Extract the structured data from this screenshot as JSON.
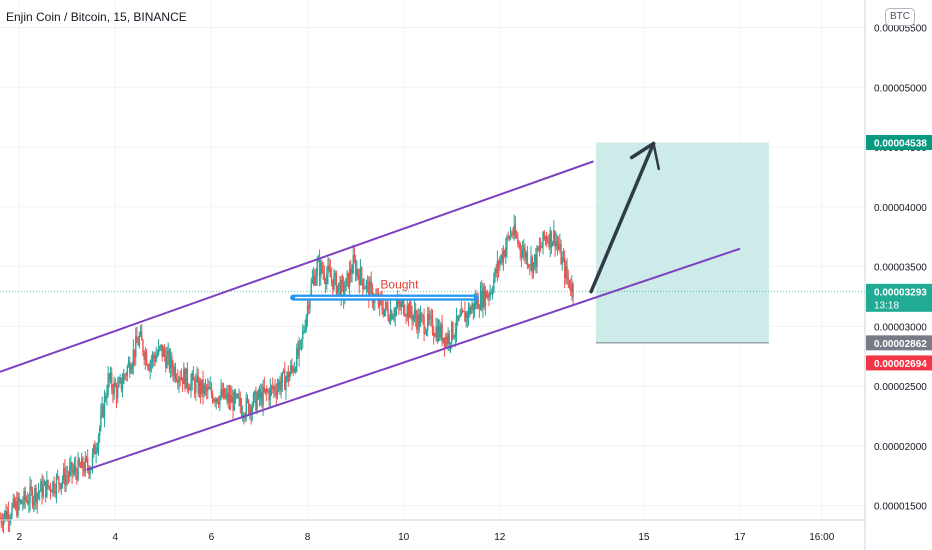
{
  "header": {
    "title": "Enjin Coin / Bitcoin, 15, BINANCE",
    "currency_button": "BTC"
  },
  "chart_data": {
    "type": "candlestick",
    "title": "Enjin Coin / Bitcoin, 15, BINANCE",
    "x_ticks": [
      "2",
      "4",
      "6",
      "8",
      "10",
      "12",
      "15",
      "17",
      "16:00"
    ],
    "x_tick_days": [
      2,
      4,
      6,
      8,
      10,
      12,
      15,
      17,
      18.7
    ],
    "x_range_days": [
      1.6,
      19.6
    ],
    "y_ticks": [
      "0.00005500",
      "0.00005000",
      "0.00004500",
      "0.00004000",
      "0.00003500",
      "0.00003000",
      "0.00002500",
      "0.00002000",
      "0.00001500"
    ],
    "y_tick_values": [
      5.5e-05,
      5e-05,
      4.5e-05,
      4e-05,
      3.5e-05,
      3e-05,
      2.5e-05,
      2e-05,
      1.5e-05
    ],
    "y_range": [
      1.38e-05,
      5.73e-05
    ],
    "grid": true,
    "price_path": [
      [
        1.6,
        1.4e-05
      ],
      [
        1.9,
        1.48e-05
      ],
      [
        2.3,
        1.6e-05
      ],
      [
        2.7,
        1.68e-05
      ],
      [
        3.1,
        1.78e-05
      ],
      [
        3.5,
        1.85e-05
      ],
      [
        3.7,
        2.2e-05
      ],
      [
        3.85,
        2.55e-05
      ],
      [
        4.05,
        2.45e-05
      ],
      [
        4.3,
        2.7e-05
      ],
      [
        4.5,
        2.9e-05
      ],
      [
        4.7,
        2.7e-05
      ],
      [
        4.95,
        2.8e-05
      ],
      [
        5.2,
        2.65e-05
      ],
      [
        5.5,
        2.55e-05
      ],
      [
        5.9,
        2.45e-05
      ],
      [
        6.3,
        2.4e-05
      ],
      [
        6.7,
        2.32e-05
      ],
      [
        7.2,
        2.45e-05
      ],
      [
        7.6,
        2.58e-05
      ],
      [
        7.85,
        2.8e-05
      ],
      [
        8.05,
        3.3e-05
      ],
      [
        8.2,
        3.5e-05
      ],
      [
        8.5,
        3.4e-05
      ],
      [
        8.75,
        3.28e-05
      ],
      [
        8.95,
        3.52e-05
      ],
      [
        9.2,
        3.35e-05
      ],
      [
        9.45,
        3.2e-05
      ],
      [
        9.7,
        3.12e-05
      ],
      [
        10.0,
        3.18e-05
      ],
      [
        10.3,
        3.05e-05
      ],
      [
        10.6,
        3e-05
      ],
      [
        10.9,
        2.9e-05
      ],
      [
        11.2,
        3.05e-05
      ],
      [
        11.5,
        3.2e-05
      ],
      [
        11.8,
        3.3e-05
      ],
      [
        12.0,
        3.55e-05
      ],
      [
        12.25,
        3.8e-05
      ],
      [
        12.45,
        3.65e-05
      ],
      [
        12.7,
        3.52e-05
      ],
      [
        12.95,
        3.75e-05
      ],
      [
        13.15,
        3.75e-05
      ],
      [
        13.4,
        3.4e-05
      ],
      [
        13.55,
        3.29e-05
      ]
    ],
    "channel_upper": [
      [
        1.6,
        2.62e-05
      ],
      [
        13.95,
        4.38e-05
      ]
    ],
    "channel_lower": [
      [
        3.4,
        1.8e-05
      ],
      [
        17.0,
        3.65e-05
      ]
    ],
    "support_line": {
      "label": "Bought",
      "x": [
        7.7,
        11.5
      ],
      "value": 3.24e-05
    },
    "arrow": {
      "points": [
        [
          13.9,
          3.29e-05
        ],
        [
          15.2,
          4.53e-05
        ]
      ]
    },
    "target_zone": {
      "x": [
        14.0,
        17.6
      ],
      "from": 2.862e-05,
      "to": 4.538e-05
    },
    "stop_zone": {
      "x": [
        14.0,
        17.6
      ],
      "from": 2.694e-05,
      "to": 2.862e-05
    },
    "price_labels": [
      {
        "text": "0.00004538",
        "value": 4.538e-05,
        "color": "#089981"
      },
      {
        "text": "0.00003293",
        "value": 3.293e-05,
        "color": "#22ab94",
        "sub": "13:18"
      },
      {
        "text": "0.00002862",
        "value": 2.862e-05,
        "color": "#787b86"
      },
      {
        "text": "0.00002694",
        "value": 2.694e-05,
        "color": "#f23645"
      }
    ],
    "colors": {
      "up": "#26a69a",
      "down": "#ef5350",
      "channel": "#7e3fc0",
      "support": "#2196f3",
      "target_fill": "#cdebe8",
      "stop_fill": "#fddada",
      "arrow": "#2f3b45"
    }
  }
}
